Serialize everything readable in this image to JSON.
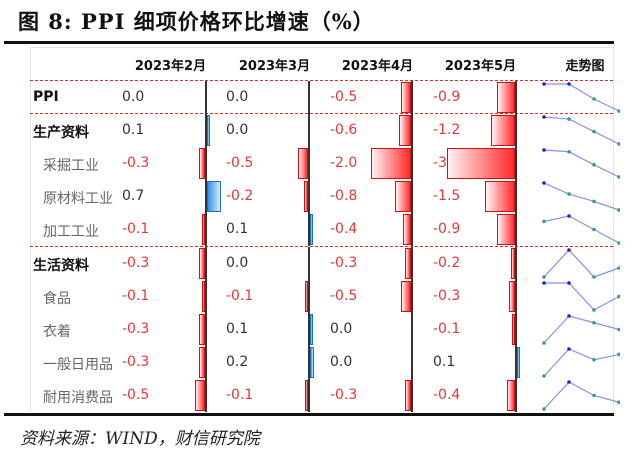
{
  "title": "图 8:  PPI 细项价格环比增速（%）",
  "source": "资料来源：WIND，财信研究院",
  "columns": [
    "2023年2月",
    "2023年3月",
    "2023年4月",
    "2023年5月",
    "走势图"
  ],
  "rows": [
    {
      "label": "PPI",
      "level": "main",
      "values": [
        "0.0",
        "0.0",
        "-0.5",
        "-0.9"
      ]
    },
    {
      "label": "生产资料",
      "level": "main",
      "values": [
        "0.1",
        "0.0",
        "-0.6",
        "-1.2"
      ]
    },
    {
      "label": "采掘工业",
      "level": "sub",
      "values": [
        "-0.3",
        "-0.5",
        "-2.0",
        "-3.4"
      ]
    },
    {
      "label": "原材料工业",
      "level": "sub",
      "values": [
        "0.7",
        "-0.2",
        "-0.8",
        "-1.5"
      ]
    },
    {
      "label": "加工工业",
      "level": "sub",
      "values": [
        "-0.1",
        "0.1",
        "-0.4",
        "-0.9"
      ]
    },
    {
      "label": "生活资料",
      "level": "main",
      "values": [
        "-0.3",
        "0.0",
        "-0.3",
        "-0.2"
      ]
    },
    {
      "label": "食品",
      "level": "sub",
      "values": [
        "-0.1",
        "-0.1",
        "-0.5",
        "-0.3"
      ]
    },
    {
      "label": "衣着",
      "level": "sub",
      "values": [
        "-0.3",
        "0.1",
        "0.0",
        "-0.1"
      ]
    },
    {
      "label": "一般日用品",
      "level": "sub",
      "values": [
        "-0.3",
        "0.2",
        "0.0",
        "0.1"
      ]
    },
    {
      "label": "耐用消费品",
      "level": "sub",
      "values": [
        "-0.5",
        "-0.1",
        "-0.3",
        "-0.4"
      ]
    }
  ],
  "colors": {
    "negative": "#e8373a",
    "positive_bar": "#2f8fe8",
    "sparkline": "#8c8cf0"
  },
  "chart_data": {
    "type": "table",
    "title": "PPI 细项价格环比增速（%）",
    "categories": [
      "2023年2月",
      "2023年3月",
      "2023年4月",
      "2023年5月"
    ],
    "series": [
      {
        "name": "PPI",
        "values": [
          0.0,
          0.0,
          -0.5,
          -0.9
        ]
      },
      {
        "name": "生产资料",
        "values": [
          0.1,
          0.0,
          -0.6,
          -1.2
        ]
      },
      {
        "name": "采掘工业",
        "values": [
          -0.3,
          -0.5,
          -2.0,
          -3.4
        ]
      },
      {
        "name": "原材料工业",
        "values": [
          0.7,
          -0.2,
          -0.8,
          -1.5
        ]
      },
      {
        "name": "加工工业",
        "values": [
          -0.1,
          0.1,
          -0.4,
          -0.9
        ]
      },
      {
        "name": "生活资料",
        "values": [
          -0.3,
          0.0,
          -0.3,
          -0.2
        ]
      },
      {
        "name": "食品",
        "values": [
          -0.1,
          -0.1,
          -0.5,
          -0.3
        ]
      },
      {
        "name": "衣着",
        "values": [
          -0.3,
          0.1,
          0.0,
          -0.1
        ]
      },
      {
        "name": "一般日用品",
        "values": [
          -0.3,
          0.2,
          0.0,
          0.1
        ]
      },
      {
        "name": "耐用消费品",
        "values": [
          -0.5,
          -0.1,
          -0.3,
          -0.4
        ]
      }
    ],
    "notes": "Each cell includes an in-cell data bar (red negative, blue positive); last column 走势图 shows per-row sparkline.",
    "source": "WIND，财信研究院"
  }
}
